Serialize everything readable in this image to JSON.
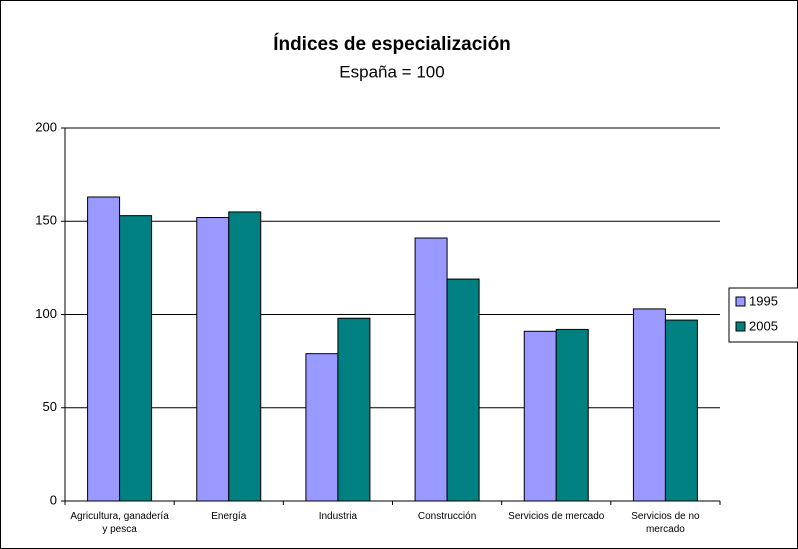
{
  "chart_data": {
    "type": "bar",
    "title": "Índices de especialización",
    "subtitle": "España = 100",
    "categories": [
      "Agricultura, ganadería y pesca",
      "Energía",
      "Industria",
      "Construcción",
      "Servicios de mercado",
      "Servicios de no mercado"
    ],
    "series": [
      {
        "name": "1995",
        "color": "#9999ff",
        "values": [
          163,
          152,
          79,
          141,
          91,
          103
        ]
      },
      {
        "name": "2005",
        "color": "#008080",
        "values": [
          153,
          155,
          98,
          119,
          92,
          97
        ]
      }
    ],
    "ylim": [
      0,
      200
    ],
    "yticks": [
      0,
      50,
      100,
      150,
      200
    ],
    "grid": true,
    "legend": "right"
  }
}
